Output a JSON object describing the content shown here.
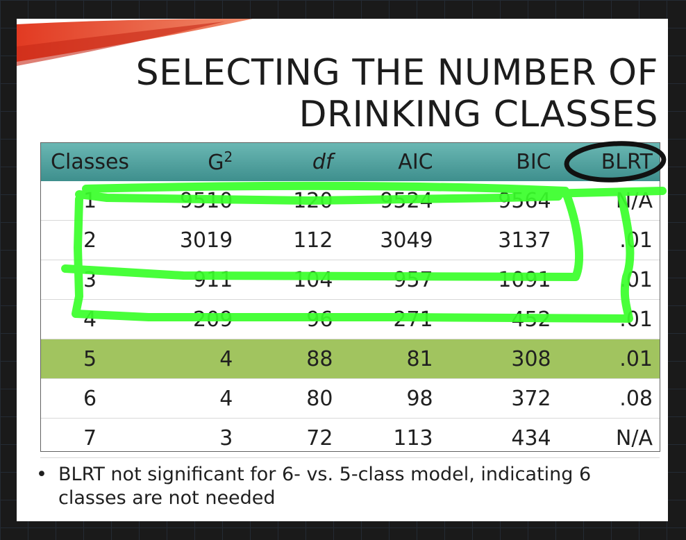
{
  "slide": {
    "title_line1": "SELECTING THE NUMBER OF",
    "title_line2": "DRINKING CLASSES",
    "bullet_text": "BLRT not significant for 6- vs. 5-class model, indicating 6 classes are not needed"
  },
  "table": {
    "headers": {
      "classes": "Classes",
      "g2_base": "G",
      "g2_sup": "2",
      "df": "df",
      "aic": "AIC",
      "bic": "BIC",
      "blrt": "BLRT"
    },
    "rows": [
      {
        "classes": "1",
        "g2": "9510",
        "df": "120",
        "aic": "9524",
        "bic": "9564",
        "blrt": "N/A"
      },
      {
        "classes": "2",
        "g2": "3019",
        "df": "112",
        "aic": "3049",
        "bic": "3137",
        "blrt": ".01"
      },
      {
        "classes": "3",
        "g2": "911",
        "df": "104",
        "aic": "957",
        "bic": "1091",
        "blrt": ".01"
      },
      {
        "classes": "4",
        "g2": "209",
        "df": "96",
        "aic": "271",
        "bic": "452",
        "blrt": ".01"
      },
      {
        "classes": "5",
        "g2": "4",
        "df": "88",
        "aic": "81",
        "bic": "308",
        "blrt": ".01"
      },
      {
        "classes": "6",
        "g2": "4",
        "df": "80",
        "aic": "98",
        "bic": "372",
        "blrt": ".08"
      },
      {
        "classes": "7",
        "g2": "3",
        "df": "72",
        "aic": "113",
        "bic": "434",
        "blrt": "N/A"
      }
    ],
    "highlighted_row": "5"
  },
  "colors": {
    "header": "#4fa3a1",
    "highlight_row": "#a1c45f",
    "annotation_green": "#39ff2a",
    "annotation_black": "#111111",
    "swoosh": "#e8432d"
  },
  "annotations": {
    "green_ink_icon": "highlighter-strokes",
    "black_ink_icon": "circle-around-blrt"
  }
}
